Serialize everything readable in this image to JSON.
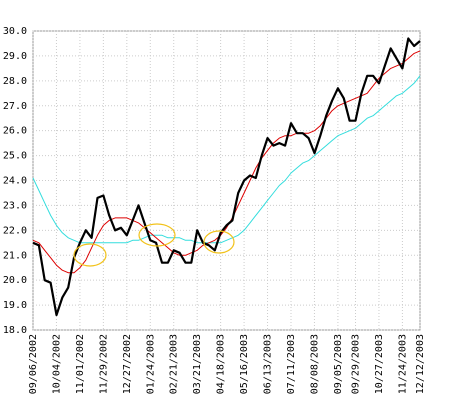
{
  "chart_data": {
    "type": "line",
    "categories": [
      "09/06/2002",
      null,
      null,
      null,
      "10/04/2002",
      null,
      null,
      null,
      "11/01/2002",
      null,
      null,
      null,
      "11/29/2002",
      null,
      null,
      null,
      "12/27/2002",
      null,
      null,
      null,
      "01/24/2003",
      null,
      null,
      null,
      "02/21/2003",
      null,
      null,
      null,
      "03/21/2003",
      null,
      null,
      null,
      "04/18/2003",
      null,
      null,
      null,
      "05/16/2003",
      null,
      null,
      null,
      "06/13/2003",
      null,
      null,
      null,
      "07/11/2003",
      null,
      null,
      null,
      "08/08/2003",
      null,
      null,
      null,
      "09/05/2003",
      null,
      null,
      "09/29/2003",
      null,
      null,
      null,
      "10/27/2003",
      null,
      null,
      null,
      "11/24/2003",
      null,
      null,
      "12/12/2003"
    ],
    "series": [
      {
        "color": "#000000",
        "values": [
          21.5,
          21.4,
          20.0,
          19.9,
          18.6,
          19.3,
          19.7,
          20.9,
          21.5,
          22.0,
          21.7,
          23.3,
          23.4,
          22.6,
          22.0,
          22.1,
          21.8,
          22.4,
          23.0,
          22.3,
          21.6,
          21.5,
          20.7,
          20.7,
          21.2,
          21.1,
          20.7,
          20.7,
          22.0,
          21.5,
          21.4,
          21.2,
          21.9,
          22.2,
          22.4,
          23.5,
          24.0,
          24.2,
          24.1,
          25.0,
          25.7,
          25.4,
          25.5,
          25.4,
          26.3,
          25.9,
          25.9,
          25.7,
          25.1,
          25.8,
          26.6,
          27.2,
          27.7,
          27.3,
          26.4,
          26.4,
          27.5,
          28.2,
          28.2,
          27.9,
          28.6,
          29.3,
          28.9,
          28.5,
          29.7,
          29.4,
          29.6
        ]
      },
      {
        "color": "#dd0000",
        "values": [
          21.6,
          21.5,
          21.2,
          20.9,
          20.6,
          20.4,
          20.3,
          20.3,
          20.5,
          20.8,
          21.3,
          21.8,
          22.2,
          22.4,
          22.5,
          22.5,
          22.5,
          22.4,
          22.3,
          22.1,
          21.9,
          21.7,
          21.5,
          21.3,
          21.1,
          21.0,
          21.0,
          21.1,
          21.2,
          21.4,
          21.5,
          21.6,
          21.8,
          22.1,
          22.5,
          23.0,
          23.5,
          24.0,
          24.5,
          24.9,
          25.2,
          25.5,
          25.7,
          25.8,
          25.8,
          25.9,
          25.9,
          25.9,
          26.0,
          26.2,
          26.5,
          26.8,
          27.0,
          27.1,
          27.2,
          27.3,
          27.4,
          27.5,
          27.8,
          28.1,
          28.3,
          28.5,
          28.6,
          28.7,
          28.9,
          29.1,
          29.2
        ]
      },
      {
        "color": "#33dddd",
        "values": [
          24.1,
          23.6,
          23.1,
          22.6,
          22.2,
          21.9,
          21.7,
          21.6,
          21.5,
          21.5,
          21.5,
          21.5,
          21.5,
          21.5,
          21.5,
          21.5,
          21.5,
          21.6,
          21.6,
          21.7,
          21.8,
          21.8,
          21.8,
          21.7,
          21.7,
          21.7,
          21.6,
          21.6,
          21.5,
          21.5,
          21.5,
          21.5,
          21.5,
          21.6,
          21.7,
          21.8,
          22.0,
          22.3,
          22.6,
          22.9,
          23.2,
          23.5,
          23.8,
          24.0,
          24.3,
          24.5,
          24.7,
          24.8,
          25.0,
          25.2,
          25.4,
          25.6,
          25.8,
          25.9,
          26.0,
          26.1,
          26.3,
          26.5,
          26.6,
          26.8,
          27.0,
          27.2,
          27.4,
          27.5,
          27.7,
          27.9,
          28.2
        ]
      }
    ],
    "ylim": [
      18,
      30
    ],
    "yticks": [
      {
        "value": 18,
        "label": "18.0"
      },
      {
        "value": 19,
        "label": "19.0"
      },
      {
        "value": 20,
        "label": "20.0"
      },
      {
        "value": 21,
        "label": "21.0"
      },
      {
        "value": 22,
        "label": "22.0"
      },
      {
        "value": 23,
        "label": "23.0"
      },
      {
        "value": 24,
        "label": "24.0"
      },
      {
        "value": 25,
        "label": "25.0"
      },
      {
        "value": 26,
        "label": "26.0"
      },
      {
        "value": 27,
        "label": "27.0"
      },
      {
        "value": 28,
        "label": "28.0"
      },
      {
        "value": 29,
        "label": "29.0"
      },
      {
        "value": 30,
        "label": "30.0"
      }
    ],
    "grid": true
  }
}
